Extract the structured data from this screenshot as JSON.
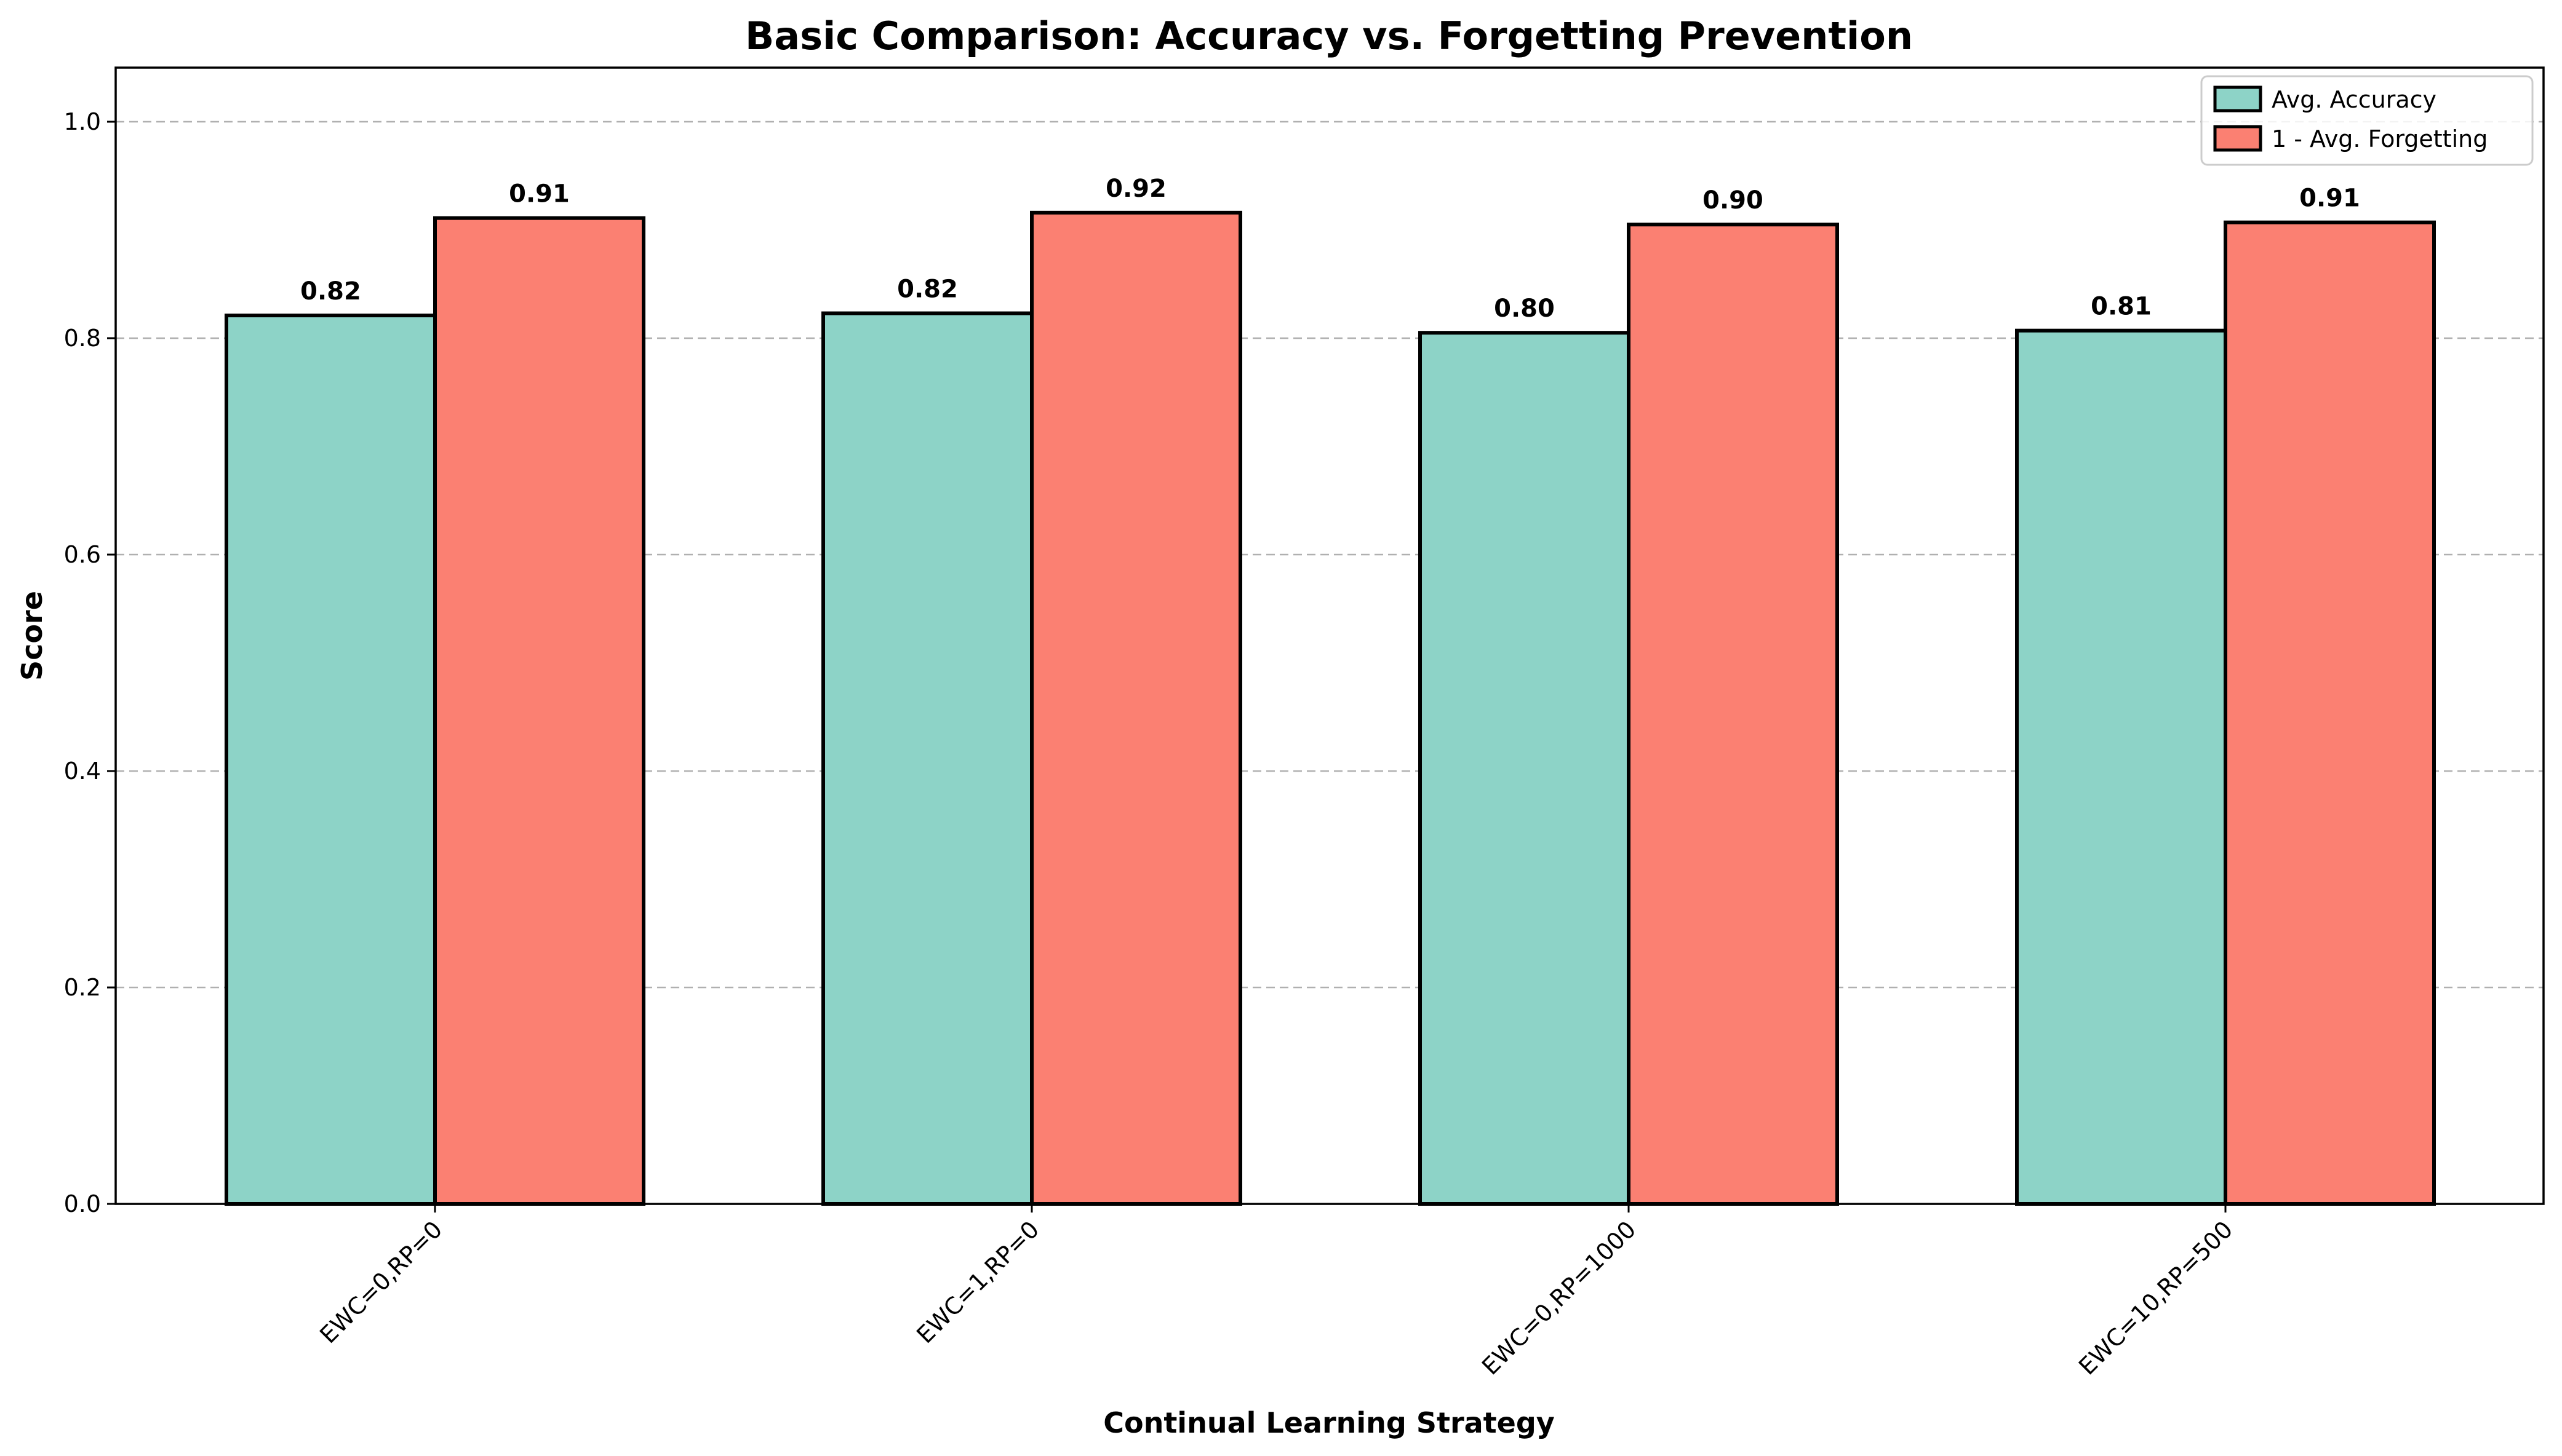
{
  "chart_data": {
    "type": "bar",
    "title": "Basic Comparison: Accuracy vs. Forgetting Prevention",
    "xlabel": "Continual Learning Strategy",
    "ylabel": "Score",
    "categories": [
      "EWC=0,RP=0",
      "EWC=1,RP=0",
      "EWC=0,RP=1000",
      "EWC=10,RP=500"
    ],
    "series": [
      {
        "name": "Avg. Accuracy",
        "color": "#8dd3c7",
        "values": [
          0.821,
          0.823,
          0.805,
          0.807
        ],
        "labels": [
          "0.82",
          "0.82",
          "0.80",
          "0.81"
        ]
      },
      {
        "name": "1 - Avg. Forgetting",
        "color": "#fb8072",
        "values": [
          0.911,
          0.916,
          0.905,
          0.907
        ],
        "labels": [
          "0.91",
          "0.92",
          "0.90",
          "0.91"
        ]
      }
    ],
    "ylim": [
      0,
      1.05
    ],
    "yticks": [
      0.0,
      0.2,
      0.4,
      0.6,
      0.8,
      1.0
    ],
    "ytick_labels": [
      "0.0",
      "0.2",
      "0.4",
      "0.6",
      "0.8",
      "1.0"
    ],
    "grid": "y-dashed",
    "legend": "top-right"
  }
}
